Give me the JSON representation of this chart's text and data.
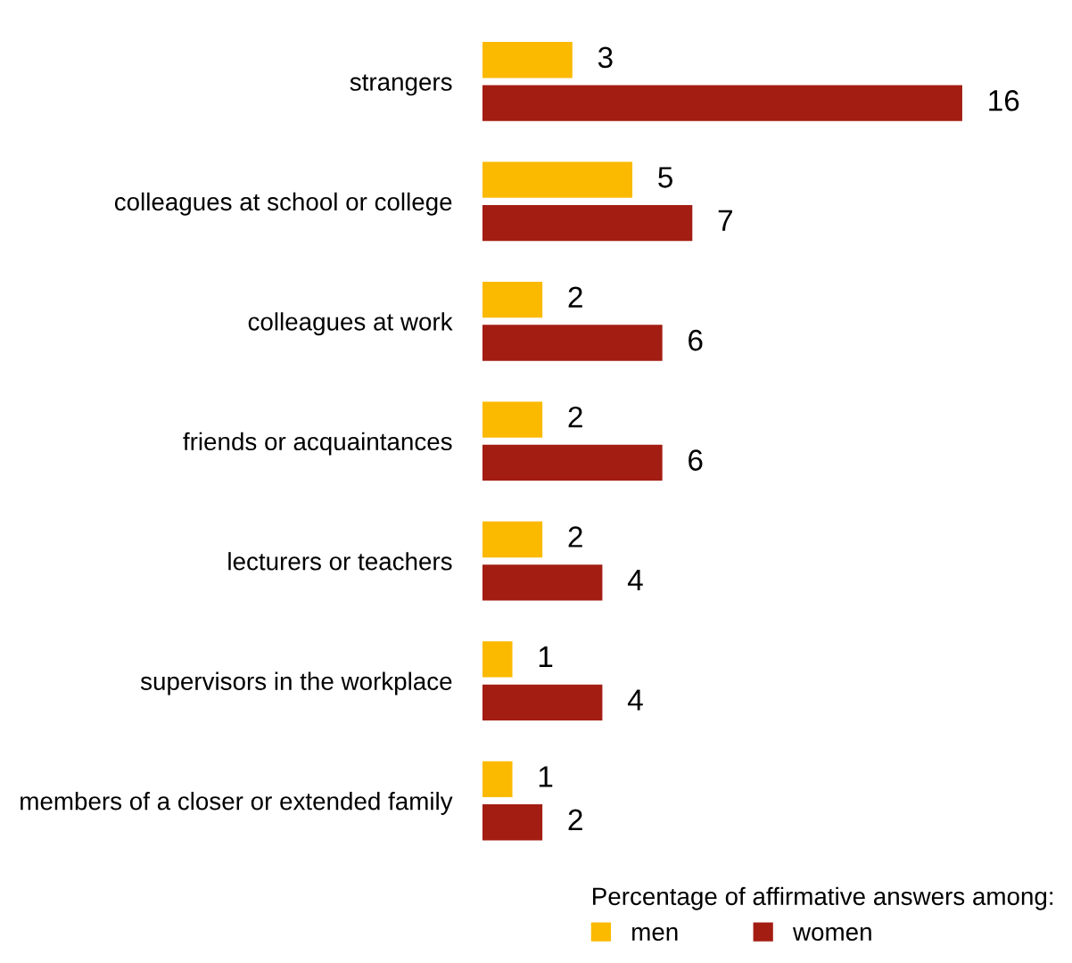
{
  "chart_data": {
    "type": "bar",
    "orientation": "horizontal",
    "categories": [
      "strangers",
      "colleagues at school or college",
      "colleagues at work",
      "friends or acquaintances",
      "lecturers or teachers",
      "supervisors in the workplace",
      "members of a closer or extended family"
    ],
    "series": [
      {
        "name": "men",
        "color": "#fbb900",
        "values": [
          3,
          5,
          2,
          2,
          2,
          1,
          1
        ]
      },
      {
        "name": "women",
        "color": "#a31d12",
        "values": [
          16,
          7,
          6,
          6,
          4,
          4,
          2
        ]
      }
    ],
    "data_labels": true,
    "legend": "bottom right",
    "legend_title": "Percentage of affirmative answers among:",
    "grid": false
  }
}
